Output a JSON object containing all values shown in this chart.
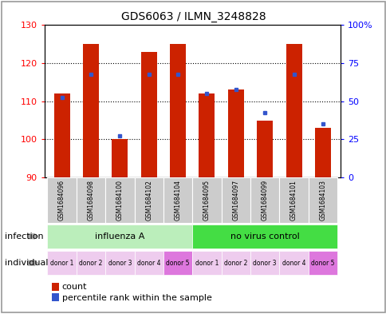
{
  "title": "GDS6063 / ILMN_3248828",
  "samples": [
    "GSM1684096",
    "GSM1684098",
    "GSM1684100",
    "GSM1684102",
    "GSM1684104",
    "GSM1684095",
    "GSM1684097",
    "GSM1684099",
    "GSM1684101",
    "GSM1684103"
  ],
  "count_values": [
    112,
    125,
    100,
    123,
    125,
    112,
    113,
    105,
    125,
    103
  ],
  "percentile_values": [
    111,
    117,
    101,
    117,
    117,
    112,
    113,
    107,
    117,
    104
  ],
  "ylim_left": [
    90,
    130
  ],
  "ylim_right": [
    0,
    100
  ],
  "yticks_left": [
    90,
    100,
    110,
    120,
    130
  ],
  "yticks_right": [
    0,
    25,
    50,
    75,
    100
  ],
  "yticklabels_right": [
    "0",
    "25",
    "50",
    "75",
    "100%"
  ],
  "bar_color": "#cc2200",
  "dot_color": "#3355cc",
  "infection_groups": [
    {
      "label": "influenza A",
      "start": 0,
      "end": 5,
      "color": "#bbeebb"
    },
    {
      "label": "no virus control",
      "start": 5,
      "end": 10,
      "color": "#44dd44"
    }
  ],
  "individual_labels": [
    "donor 1",
    "donor 2",
    "donor 3",
    "donor 4",
    "donor 5",
    "donor 1",
    "donor 2",
    "donor 3",
    "donor 4",
    "donor 5"
  ],
  "individual_colors": [
    "#eeccee",
    "#eeccee",
    "#eeccee",
    "#eeccee",
    "#dd77dd",
    "#eeccee",
    "#eeccee",
    "#eeccee",
    "#eeccee",
    "#dd77dd"
  ],
  "infection_label": "infection",
  "individual_label": "individual",
  "legend_count_label": "count",
  "legend_percentile_label": "percentile rank within the sample",
  "base_value": 90,
  "background_color": "#ffffff",
  "plot_bg_color": "#ffffff",
  "bar_width": 0.55,
  "sample_label_color": "#cccccc",
  "border_color": "#999999"
}
